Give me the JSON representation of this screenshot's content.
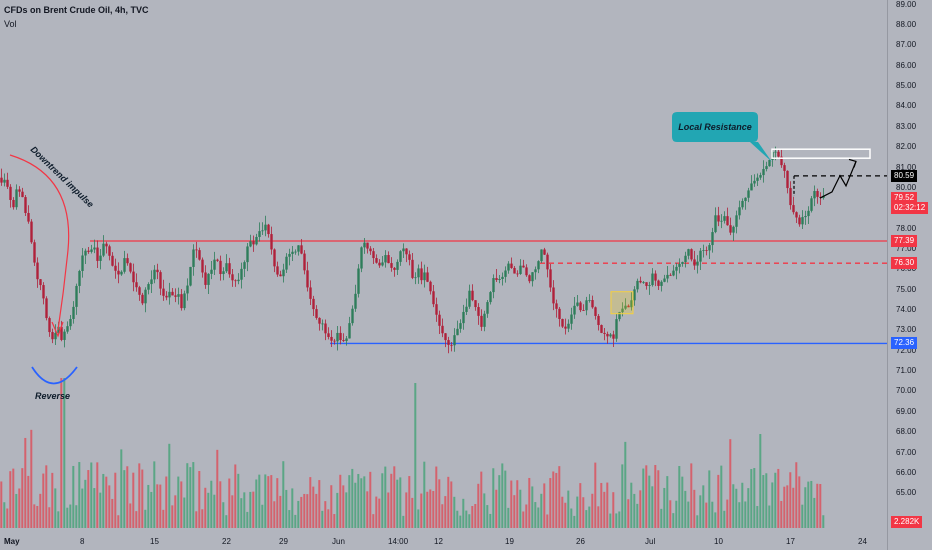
{
  "header": {
    "title": "CFDs on Brent Crude Oil, 4h, TVC",
    "vol_label": "Vol"
  },
  "colors": {
    "background": "#b2b5be",
    "up": "#2e7d5b",
    "down": "#b0213a",
    "resistance": "#f23645",
    "support": "#2962ff",
    "callout": "#22a6b3",
    "volume_up": "#4aa37b",
    "volume_down": "#d9535f"
  },
  "chart_data": {
    "type": "candlestick",
    "symbol": "CFDs on Brent Crude Oil",
    "timeframe": "4h",
    "source": "TVC",
    "ylim": [
      64.1,
      89.2
    ],
    "y_ticks": [
      "89.00",
      "88.00",
      "87.00",
      "86.00",
      "85.00",
      "84.00",
      "83.00",
      "82.00",
      "81.00",
      "80.00",
      "79.00",
      "78.00",
      "77.00",
      "76.00",
      "75.00",
      "74.00",
      "73.00",
      "72.00",
      "71.00",
      "70.00",
      "69.00",
      "68.00",
      "67.00",
      "66.00",
      "65.00"
    ],
    "x_ticks": [
      "May",
      "8",
      "15",
      "22",
      "29",
      "Jun",
      "14:00",
      "12",
      "19",
      "26",
      "Jul",
      "10",
      "17",
      "24"
    ],
    "price_path": [
      [
        0,
        80.3
      ],
      [
        4,
        80.5
      ],
      [
        8,
        79.4
      ],
      [
        12,
        79.0
      ],
      [
        16,
        80.3
      ],
      [
        20,
        79.6
      ],
      [
        24,
        78.7
      ],
      [
        28,
        78.1
      ],
      [
        32,
        76.7
      ],
      [
        36,
        75.5
      ],
      [
        40,
        75.2
      ],
      [
        44,
        74.0
      ],
      [
        48,
        72.8
      ],
      [
        52,
        72.6
      ],
      [
        56,
        73.3
      ],
      [
        60,
        72.7
      ],
      [
        64,
        73.1
      ],
      [
        68,
        73.5
      ],
      [
        72,
        74.2
      ],
      [
        76,
        75.3
      ],
      [
        80,
        76.5
      ],
      [
        84,
        77.0
      ],
      [
        88,
        76.8
      ],
      [
        92,
        77.2
      ],
      [
        96,
        76.5
      ],
      [
        100,
        76.9
      ],
      [
        104,
        77.4
      ],
      [
        108,
        76.7
      ],
      [
        112,
        76.0
      ],
      [
        116,
        75.6
      ],
      [
        120,
        75.8
      ],
      [
        124,
        76.6
      ],
      [
        128,
        76.2
      ],
      [
        132,
        75.4
      ],
      [
        136,
        74.9
      ],
      [
        140,
        74.3
      ],
      [
        144,
        74.9
      ],
      [
        148,
        75.4
      ],
      [
        152,
        75.9
      ],
      [
        156,
        75.7
      ],
      [
        160,
        75.0
      ],
      [
        164,
        74.6
      ],
      [
        168,
        75.0
      ],
      [
        172,
        74.4
      ],
      [
        176,
        74.9
      ],
      [
        180,
        74.2
      ],
      [
        184,
        74.8
      ],
      [
        188,
        75.6
      ],
      [
        192,
        77.0
      ],
      [
        196,
        76.8
      ],
      [
        200,
        76.0
      ],
      [
        204,
        75.3
      ],
      [
        208,
        75.8
      ],
      [
        212,
        76.5
      ],
      [
        216,
        76.3
      ],
      [
        220,
        75.7
      ],
      [
        224,
        76.3
      ],
      [
        228,
        75.9
      ],
      [
        232,
        75.1
      ],
      [
        236,
        75.5
      ],
      [
        240,
        76.0
      ],
      [
        244,
        76.5
      ],
      [
        248,
        77.4
      ],
      [
        252,
        77.2
      ],
      [
        256,
        77.9
      ],
      [
        260,
        77.7
      ],
      [
        264,
        78.3
      ],
      [
        268,
        77.6
      ],
      [
        272,
        76.2
      ],
      [
        276,
        75.8
      ],
      [
        280,
        75.4
      ],
      [
        284,
        76.3
      ],
      [
        288,
        76.9
      ],
      [
        292,
        76.7
      ],
      [
        296,
        77.3
      ],
      [
        300,
        76.8
      ],
      [
        304,
        75.6
      ],
      [
        308,
        74.7
      ],
      [
        312,
        74.0
      ],
      [
        316,
        73.6
      ],
      [
        320,
        73.4
      ],
      [
        324,
        72.9
      ],
      [
        328,
        72.4
      ],
      [
        332,
        72.4
      ],
      [
        336,
        72.9
      ],
      [
        340,
        72.6
      ],
      [
        344,
        72.4
      ],
      [
        348,
        73.3
      ],
      [
        352,
        74.2
      ],
      [
        356,
        75.6
      ],
      [
        360,
        77.0
      ],
      [
        364,
        77.3
      ],
      [
        368,
        76.9
      ],
      [
        372,
        76.6
      ],
      [
        376,
        76.0
      ],
      [
        380,
        76.4
      ],
      [
        384,
        76.7
      ],
      [
        388,
        76.4
      ],
      [
        392,
        75.9
      ],
      [
        396,
        76.4
      ],
      [
        400,
        77.1
      ],
      [
        404,
        76.8
      ],
      [
        408,
        76.5
      ],
      [
        412,
        75.2
      ],
      [
        416,
        76.3
      ],
      [
        420,
        75.6
      ],
      [
        424,
        75.9
      ],
      [
        428,
        75.2
      ],
      [
        432,
        74.2
      ],
      [
        436,
        73.6
      ],
      [
        440,
        72.9
      ],
      [
        444,
        72.4
      ],
      [
        448,
        72.2
      ],
      [
        452,
        72.6
      ],
      [
        456,
        73.0
      ],
      [
        460,
        73.5
      ],
      [
        464,
        74.1
      ],
      [
        468,
        75.0
      ],
      [
        472,
        74.4
      ],
      [
        476,
        73.7
      ],
      [
        480,
        73.2
      ],
      [
        484,
        73.9
      ],
      [
        488,
        74.6
      ],
      [
        492,
        75.5
      ],
      [
        496,
        75.7
      ],
      [
        500,
        75.4
      ],
      [
        504,
        76.0
      ],
      [
        508,
        76.5
      ],
      [
        512,
        75.9
      ],
      [
        516,
        75.6
      ],
      [
        520,
        76.4
      ],
      [
        524,
        75.8
      ],
      [
        528,
        75.5
      ],
      [
        532,
        75.9
      ],
      [
        536,
        76.3
      ],
      [
        540,
        76.9
      ],
      [
        544,
        76.6
      ],
      [
        548,
        75.5
      ],
      [
        552,
        74.5
      ],
      [
        556,
        74.0
      ],
      [
        560,
        73.4
      ],
      [
        564,
        73.2
      ],
      [
        568,
        73.5
      ],
      [
        572,
        74.0
      ],
      [
        576,
        74.4
      ],
      [
        580,
        74.0
      ],
      [
        584,
        74.3
      ],
      [
        588,
        74.5
      ],
      [
        592,
        73.9
      ],
      [
        596,
        73.2
      ],
      [
        600,
        73.0
      ],
      [
        604,
        72.7
      ],
      [
        608,
        72.8
      ],
      [
        612,
        72.6
      ],
      [
        614,
        73.6
      ],
      [
        618,
        74.0
      ],
      [
        622,
        74.3
      ],
      [
        626,
        74.1
      ],
      [
        630,
        74.6
      ],
      [
        634,
        75.2
      ],
      [
        638,
        75.6
      ],
      [
        642,
        75.3
      ],
      [
        646,
        75.0
      ],
      [
        650,
        75.7
      ],
      [
        654,
        75.5
      ],
      [
        658,
        75.2
      ],
      [
        662,
        75.6
      ],
      [
        666,
        75.9
      ],
      [
        670,
        75.7
      ],
      [
        674,
        76.1
      ],
      [
        678,
        76.4
      ],
      [
        682,
        76.5
      ],
      [
        686,
        76.9
      ],
      [
        690,
        76.6
      ],
      [
        694,
        76.0
      ],
      [
        698,
        76.8
      ],
      [
        702,
        77.1
      ],
      [
        706,
        76.9
      ],
      [
        710,
        77.8
      ],
      [
        714,
        78.5
      ],
      [
        718,
        78.2
      ],
      [
        722,
        78.7
      ],
      [
        726,
        78.2
      ],
      [
        730,
        77.8
      ],
      [
        734,
        78.4
      ],
      [
        738,
        78.9
      ],
      [
        742,
        79.4
      ],
      [
        746,
        79.6
      ],
      [
        750,
        80.1
      ],
      [
        754,
        80.6
      ],
      [
        758,
        80.4
      ],
      [
        762,
        81.0
      ],
      [
        766,
        81.3
      ],
      [
        770,
        81.6
      ],
      [
        774,
        81.7
      ],
      [
        778,
        81.5
      ],
      [
        782,
        80.9
      ],
      [
        786,
        80.0
      ],
      [
        790,
        79.1
      ],
      [
        794,
        78.6
      ],
      [
        798,
        78.3
      ],
      [
        802,
        78.5
      ],
      [
        806,
        78.9
      ],
      [
        810,
        79.4
      ],
      [
        814,
        79.8
      ],
      [
        818,
        79.6
      ],
      [
        822,
        79.52
      ]
    ],
    "levels": [
      {
        "value": 77.39,
        "style": "solid",
        "color": "#f23645",
        "label": "77.39"
      },
      {
        "value": 76.3,
        "style": "dashed",
        "color": "#f23645",
        "label": "76.30"
      },
      {
        "value": 72.36,
        "style": "solid",
        "color": "#2962ff",
        "label": "72.36"
      },
      {
        "value": 80.59,
        "style": "dashed",
        "color": "#000000",
        "label": "80.59"
      }
    ],
    "current": {
      "price": "79.52",
      "countdown": "02:32:12"
    },
    "volume_last": "2.282K"
  },
  "annotations": {
    "downtrend_text": "Downtrend impulse",
    "reverse_text": "Reverse",
    "resistance_text": "Local Resistance"
  }
}
